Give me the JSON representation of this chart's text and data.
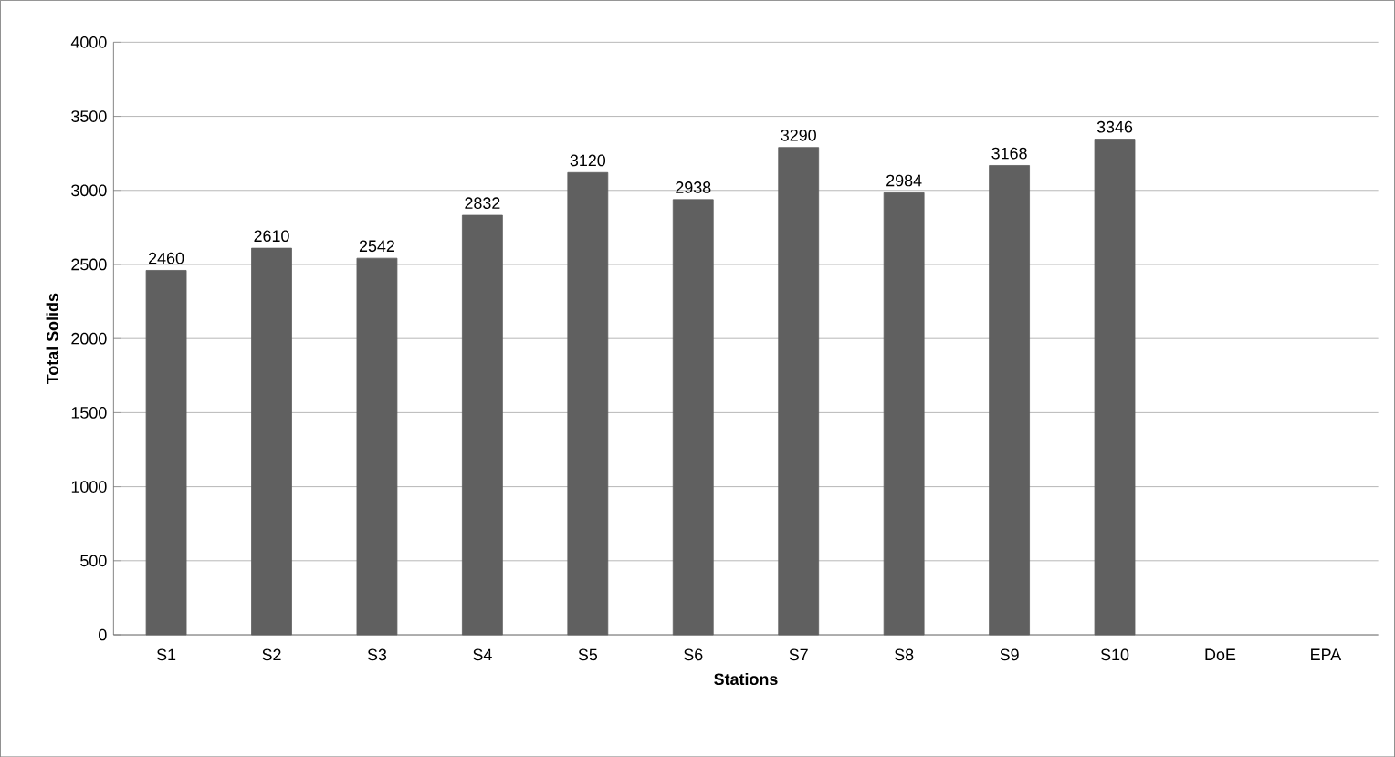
{
  "chart_data": {
    "type": "bar",
    "xlabel": "Stations",
    "ylabel": "Total Solids",
    "categories": [
      "S1",
      "S2",
      "S3",
      "S4",
      "S5",
      "S6",
      "S7",
      "S8",
      "S9",
      "S10",
      "DoE",
      "EPA"
    ],
    "values": [
      2460,
      2610,
      2542,
      2832,
      3120,
      2938,
      3290,
      2984,
      3168,
      3346,
      null,
      null
    ],
    "color": "#606060",
    "ylim": [
      0,
      4000
    ],
    "yticks": [
      0,
      500,
      1000,
      1500,
      2000,
      2500,
      3000,
      3500,
      4000
    ],
    "grid": "y",
    "data_labels": true
  }
}
